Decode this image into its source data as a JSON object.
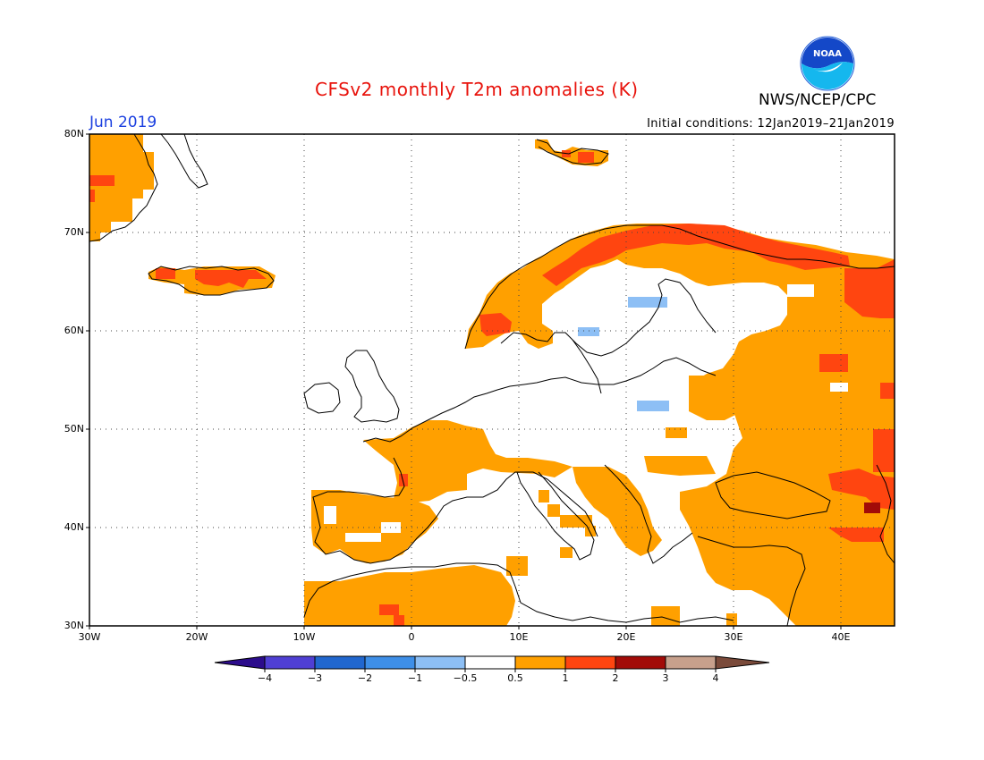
{
  "title": "CFSv2 monthly T2m anomalies (K)",
  "agency": "NWS/NCEP/CPC",
  "logo_text": "NOAA",
  "valid_month": "Jun 2019",
  "initial_conditions": "Initial conditions: 12Jan2019–21Jan2019",
  "map": {
    "lat_range": [
      30,
      80
    ],
    "lon_range": [
      -30,
      45
    ],
    "grid": "dotted",
    "lat_labels": [
      "80N",
      "70N",
      "60N",
      "50N",
      "40N",
      "30N"
    ],
    "lon_labels": [
      "30W",
      "20W",
      "10W",
      "0",
      "10E",
      "20E",
      "30E",
      "40E"
    ]
  },
  "colorbar": {
    "labels": [
      "−4",
      "−3",
      "−2",
      "−1",
      "−0.5",
      "0.5",
      "1",
      "2",
      "3",
      "4"
    ],
    "colors": [
      "#2c0c8c",
      "#4f3fd4",
      "#2167cf",
      "#3e8fe8",
      "#8dbff5",
      "#ffffff",
      "#ffa000",
      "#ff4510",
      "#a20b08",
      "#c7a08c",
      "#7a4a3a"
    ]
  },
  "anomaly_colors": {
    "warm_0.5_1": "#ffa000",
    "warm_1_2": "#ff4510",
    "warm_2_3": "#a20b08",
    "cool_-1_-0.5": "#8dbff5"
  }
}
